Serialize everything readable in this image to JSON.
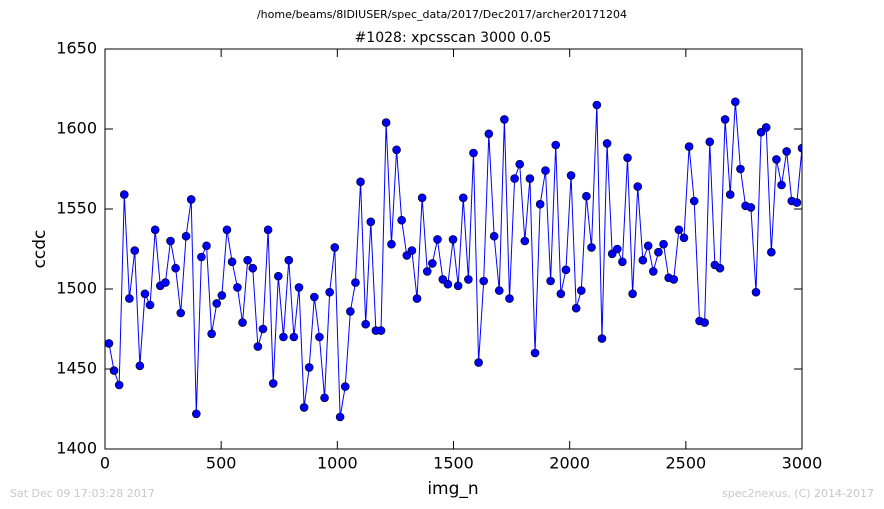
{
  "chart_data": {
    "type": "line",
    "suptitle": "/home/beams/8IDIUSER/spec_data/2017/Dec2017/archer20171204",
    "title": "#1028: xpcsscan 3000 0.05",
    "xlabel": "img_n",
    "ylabel": "ccdc",
    "footer_left": "Sat Dec 09 17:03:28 2017",
    "footer_right": "spec2nexus, (C) 2014-2017",
    "xlim": [
      0,
      3000
    ],
    "xticks": [
      0,
      500,
      1000,
      1500,
      2000,
      2500,
      3000
    ],
    "ylim": [
      1400,
      1650
    ],
    "yticks": [
      1400,
      1450,
      1500,
      1550,
      1600,
      1650
    ],
    "x": [
      17,
      39,
      61,
      83,
      105,
      128,
      150,
      172,
      194,
      216,
      238,
      260,
      282,
      304,
      326,
      349,
      371,
      393,
      415,
      437,
      459,
      481,
      503,
      525,
      547,
      570,
      592,
      614,
      636,
      658,
      680,
      702,
      724,
      746,
      768,
      791,
      813,
      835,
      857,
      879,
      901,
      923,
      945,
      967,
      989,
      1012,
      1034,
      1056,
      1078,
      1100,
      1122,
      1144,
      1166,
      1188,
      1210,
      1233,
      1255,
      1277,
      1299,
      1321,
      1343,
      1365,
      1387,
      1409,
      1431,
      1454,
      1476,
      1498,
      1520,
      1542,
      1564,
      1586,
      1608,
      1630,
      1652,
      1675,
      1697,
      1719,
      1741,
      1763,
      1785,
      1807,
      1829,
      1851,
      1873,
      1896,
      1918,
      1940,
      1962,
      1984,
      2006,
      2028,
      2050,
      2072,
      2094,
      2117,
      2139,
      2161,
      2183,
      2205,
      2227,
      2249,
      2271,
      2293,
      2315,
      2338,
      2360,
      2382,
      2404,
      2426,
      2448,
      2470,
      2492,
      2514,
      2536,
      2559,
      2581,
      2603,
      2625,
      2647,
      2669,
      2691,
      2713,
      2735,
      2757,
      2780,
      2802,
      2824,
      2846,
      2868,
      2890,
      2912,
      2934,
      2956,
      2978,
      3000
    ],
    "series": [
      {
        "color": "#0000ff",
        "values": [
          1466,
          1449,
          1440,
          1559,
          1494,
          1524,
          1452,
          1497,
          1490,
          1537,
          1502,
          1504,
          1530,
          1513,
          1485,
          1533,
          1556,
          1422,
          1520,
          1527,
          1472,
          1491,
          1496,
          1537,
          1517,
          1501,
          1479,
          1518,
          1513,
          1464,
          1475,
          1537,
          1441,
          1508,
          1470,
          1518,
          1470,
          1501,
          1426,
          1451,
          1495,
          1470,
          1432,
          1498,
          1526,
          1420,
          1439,
          1486,
          1504,
          1567,
          1478,
          1542,
          1474,
          1474,
          1604,
          1528,
          1587,
          1543,
          1521,
          1524,
          1494,
          1557,
          1511,
          1516,
          1531,
          1506,
          1503,
          1531,
          1502,
          1557,
          1506,
          1585,
          1454,
          1505,
          1597,
          1533,
          1499,
          1606,
          1494,
          1569,
          1578,
          1530,
          1569,
          1460,
          1553,
          1574,
          1505,
          1590,
          1497,
          1512,
          1571,
          1488,
          1499,
          1558,
          1526,
          1615,
          1469,
          1591,
          1522,
          1525,
          1517,
          1582,
          1497,
          1564,
          1518,
          1527,
          1511,
          1523,
          1528,
          1507,
          1506,
          1537,
          1532,
          1589,
          1555,
          1480,
          1479,
          1592,
          1515,
          1513,
          1606,
          1559,
          1617,
          1575,
          1552,
          1551,
          1498,
          1598,
          1601,
          1523,
          1581,
          1565,
          1586,
          1555,
          1554,
          1588
        ]
      }
    ]
  }
}
